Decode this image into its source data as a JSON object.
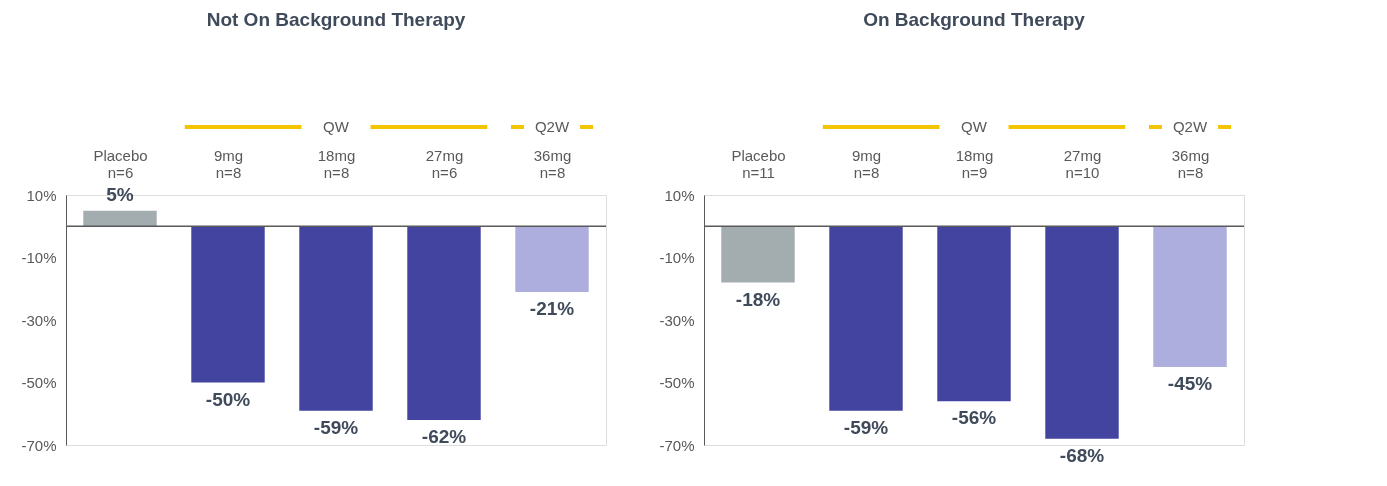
{
  "chart_data": [
    {
      "type": "bar",
      "title": "Not On Background Therapy",
      "categories": [
        "Placebo\nn=6",
        "9mg\nn=8",
        "18mg\nn=8",
        "27mg\nn=6",
        "36mg\nn=8"
      ],
      "values": [
        5,
        -50,
        -59,
        -62,
        -21
      ],
      "colors": [
        "#a3adb0",
        "#4343a0",
        "#4343a0",
        "#4343a0",
        "#adadde"
      ],
      "value_labels": [
        "5%",
        "-50%",
        "-59%",
        "-62%",
        "-21%"
      ],
      "annotations": [
        "QW",
        "Q2W"
      ],
      "ylim": [
        -70,
        10
      ],
      "yticks": [
        {
          "value": 10,
          "label": "10%"
        },
        {
          "value": -10,
          "label": "-10%"
        },
        {
          "value": -30,
          "label": "-30%"
        },
        {
          "value": -50,
          "label": "-50%"
        },
        {
          "value": -70,
          "label": "-70%"
        }
      ],
      "grid": false
    },
    {
      "type": "bar",
      "title": "On Background Therapy",
      "categories": [
        "Placebo\nn=11",
        "9mg\nn=8",
        "18mg\nn=9",
        "27mg\nn=10",
        "36mg\nn=8"
      ],
      "values": [
        -18,
        -59,
        -56,
        -68,
        -45
      ],
      "colors": [
        "#a3adb0",
        "#4343a0",
        "#4343a0",
        "#4343a0",
        "#adadde"
      ],
      "value_labels": [
        "-18%",
        "-59%",
        "-56%",
        "-68%",
        "-45%"
      ],
      "annotations": [
        "QW",
        "Q2W"
      ],
      "ylim": [
        -70,
        10
      ],
      "yticks": [
        {
          "value": 10,
          "label": "10%"
        },
        {
          "value": -10,
          "label": "-10%"
        },
        {
          "value": -30,
          "label": "-30%"
        },
        {
          "value": -50,
          "label": "-50%"
        },
        {
          "value": -70,
          "label": "-70%"
        }
      ],
      "grid": false
    }
  ]
}
